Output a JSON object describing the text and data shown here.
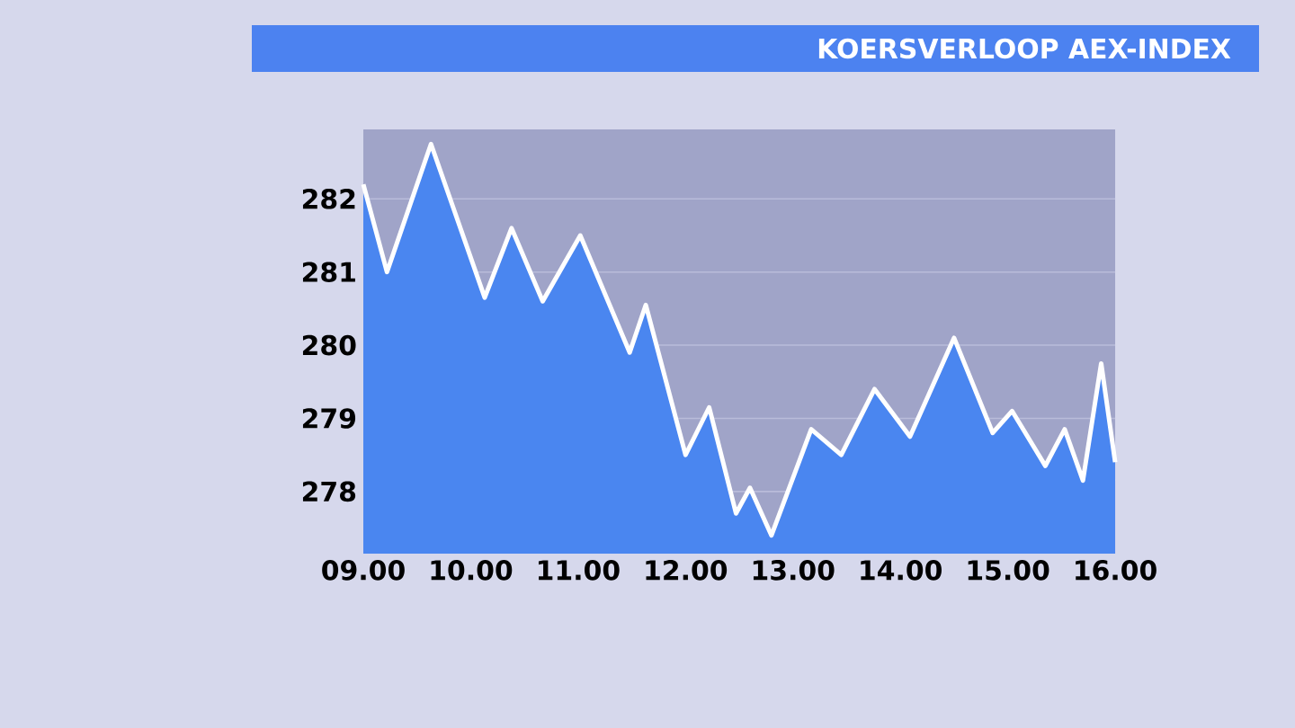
{
  "chart_data": {
    "type": "area",
    "title": "KOERSVERLOOP AEX-INDEX",
    "x": [
      9.0,
      9.22,
      9.63,
      10.13,
      10.38,
      10.67,
      11.02,
      11.48,
      11.63,
      12.0,
      12.22,
      12.47,
      12.6,
      12.8,
      13.17,
      13.45,
      13.76,
      14.09,
      14.5,
      14.86,
      15.04,
      15.35,
      15.53,
      15.7,
      15.87,
      16.0
    ],
    "series": [
      {
        "color": "#4a86f0",
        "values": [
          282.2,
          281.0,
          282.75,
          280.65,
          281.6,
          280.6,
          281.5,
          279.9,
          280.55,
          278.5,
          279.15,
          277.7,
          278.05,
          277.4,
          278.85,
          278.5,
          279.4,
          278.75,
          280.1,
          278.8,
          279.1,
          278.35,
          278.85,
          278.15,
          279.75,
          278.4
        ]
      }
    ],
    "xlim": [
      9,
      16
    ],
    "ylim": [
      277.15,
      282.95
    ],
    "xticks": [
      {
        "value": 9,
        "label": "09.00"
      },
      {
        "value": 10,
        "label": "10.00"
      },
      {
        "value": 11,
        "label": "11.00"
      },
      {
        "value": 12,
        "label": "12.00"
      },
      {
        "value": 13,
        "label": "13.00"
      },
      {
        "value": 14,
        "label": "14.00"
      },
      {
        "value": 15,
        "label": "15.00"
      },
      {
        "value": 16,
        "label": "16.00"
      }
    ],
    "yticks": [
      278,
      279,
      280,
      281,
      282
    ],
    "grid": "y"
  }
}
